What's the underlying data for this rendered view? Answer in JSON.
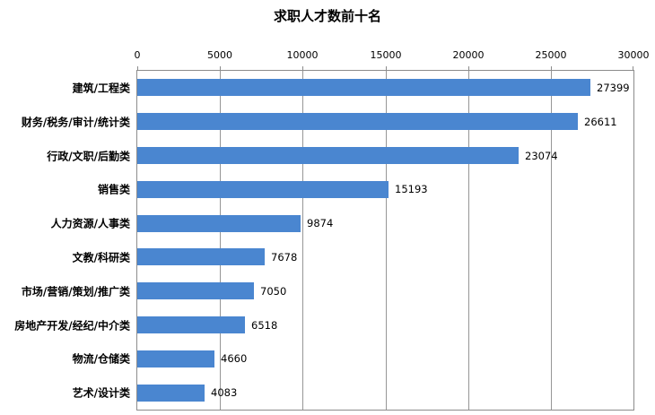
{
  "chart_data": {
    "type": "bar",
    "orientation": "horizontal",
    "title": "求职人才数前十名",
    "categories": [
      "建筑/工程类",
      "财务/税务/审计/统计类",
      "行政/文职/后勤类",
      "销售类",
      "人力资源/人事类",
      "文教/科研类",
      "市场/营销/策划/推广类",
      "房地产开发/经纪/中介类",
      "物流/仓储类",
      "艺术/设计类"
    ],
    "values": [
      27399,
      26611,
      23074,
      15193,
      9874,
      7678,
      7050,
      6518,
      4660,
      4083
    ],
    "data_labels": [
      "27399",
      "26611",
      "23074",
      "15193",
      "9874",
      "7678",
      "7050",
      "6518",
      "4660",
      "4083"
    ],
    "value_axis": {
      "position": "top",
      "min": 0,
      "max": 30000,
      "step": 5000,
      "tick_labels": [
        "0",
        "5000",
        "10000",
        "15000",
        "20000",
        "25000",
        "30000"
      ]
    },
    "grid": "vertical-on",
    "legend": "none",
    "colors": {
      "bar": "#4a86d0",
      "gridline": "#969696",
      "axis_border": "#8c8c8c",
      "text": "#000000",
      "background": "#ffffff"
    }
  }
}
